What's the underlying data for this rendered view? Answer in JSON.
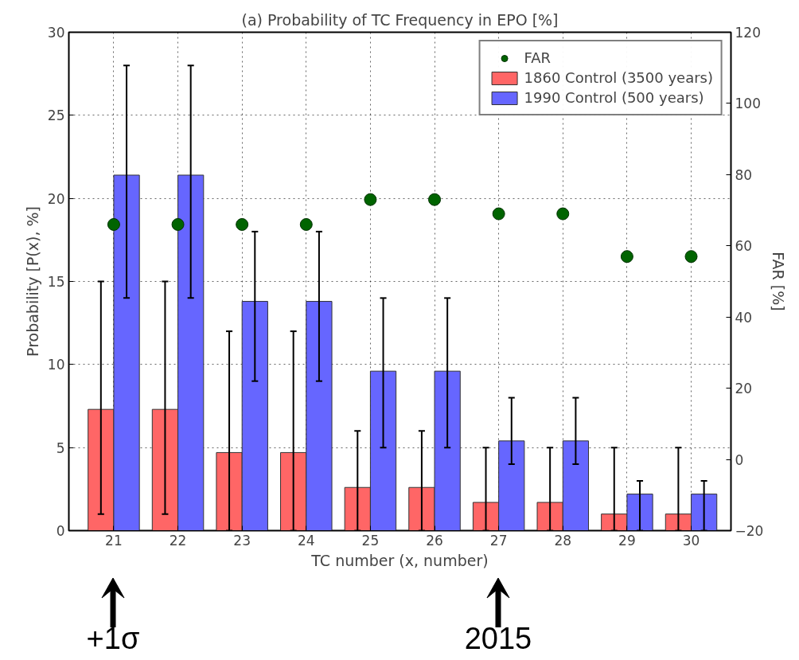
{
  "chart_data": {
    "type": "bar",
    "title": "(a) Probability of TC Frequency in EPO [%]",
    "xlabel": "TC number (x, number)",
    "ylabel": "Probability [P(x), %]",
    "y2label": "FAR [%]",
    "categories": [
      "21",
      "22",
      "23",
      "24",
      "25",
      "26",
      "27",
      "28",
      "29",
      "30"
    ],
    "series": [
      {
        "name": "FAR",
        "type": "scatter",
        "axis": "y2",
        "color": "#006400",
        "marker": "circle",
        "values": [
          66,
          66,
          66,
          66,
          73,
          73,
          69,
          69,
          57,
          57
        ]
      },
      {
        "name": "1860 Control (3500 years)",
        "color": "#ff6666",
        "values": [
          7.3,
          7.3,
          4.7,
          4.7,
          2.6,
          2.6,
          1.7,
          1.7,
          1.0,
          1.0
        ],
        "errors": [
          [
            1,
            15
          ],
          [
            1,
            15
          ],
          [
            0,
            12
          ],
          [
            0,
            12
          ],
          [
            0,
            6
          ],
          [
            0,
            6
          ],
          [
            0,
            5
          ],
          [
            0,
            5
          ],
          [
            0,
            5
          ],
          [
            0,
            5
          ]
        ]
      },
      {
        "name": "1990 Control (500 years)",
        "color": "#6666ff",
        "values": [
          21.4,
          21.4,
          13.8,
          13.8,
          9.6,
          9.6,
          5.4,
          5.4,
          2.2,
          2.2
        ],
        "errors": [
          [
            14,
            28
          ],
          [
            14,
            28
          ],
          [
            9,
            18
          ],
          [
            9,
            18
          ],
          [
            5,
            14
          ],
          [
            5,
            14
          ],
          [
            4,
            8
          ],
          [
            4,
            8
          ],
          [
            0,
            3
          ],
          [
            0,
            3
          ]
        ]
      }
    ],
    "ylim": [
      0,
      30
    ],
    "yticks": [
      0,
      5,
      10,
      15,
      20,
      25,
      30
    ],
    "y2lim": [
      -20,
      120
    ],
    "y2ticks": [
      -20,
      0,
      20,
      40,
      60,
      80,
      100,
      120
    ],
    "grid": true,
    "legend": "top right",
    "annotations": [
      "+1σ",
      "2015"
    ]
  }
}
